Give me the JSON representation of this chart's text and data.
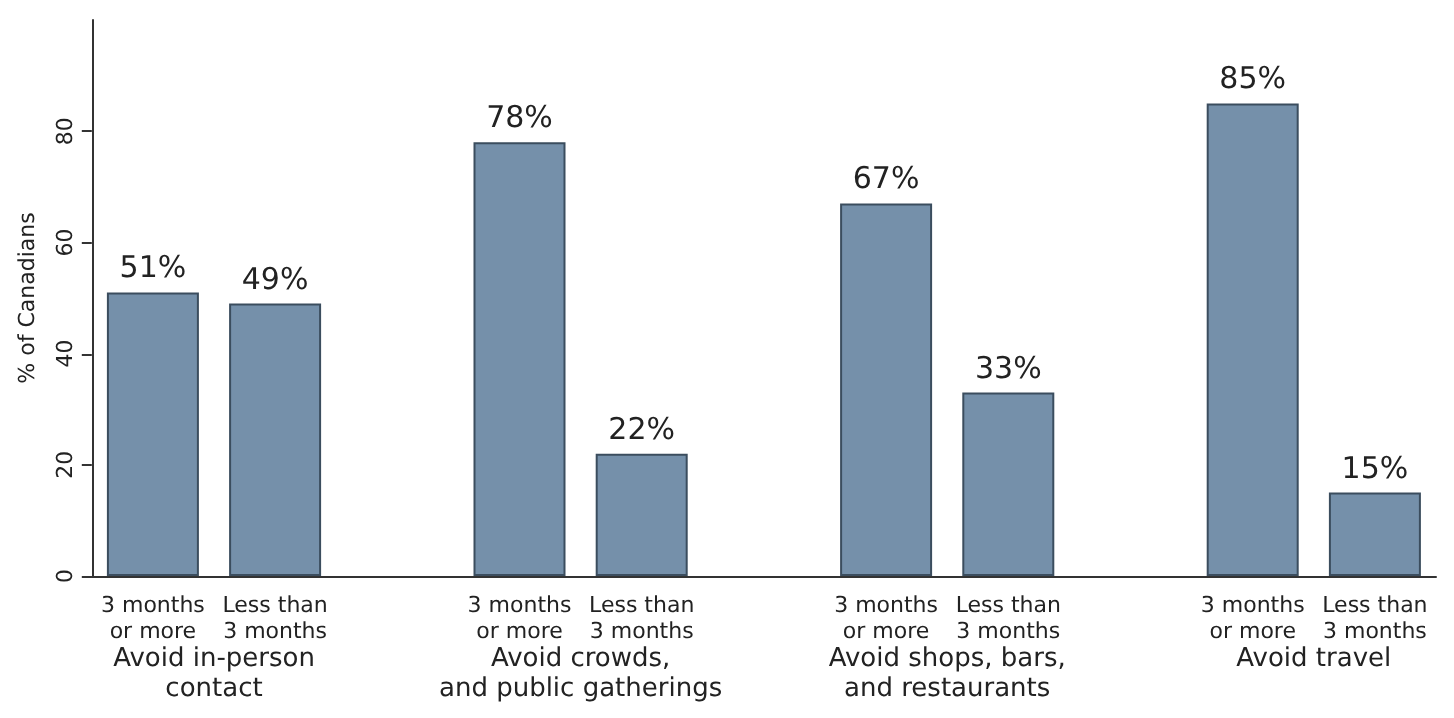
{
  "chart_data": {
    "type": "bar",
    "ylabel": "% of Canadians",
    "categories": [
      "3 months\nor more",
      "Less than\n3 months",
      null,
      "3 months\nor more",
      "Less than\n3 months",
      null,
      "3 months\nor more",
      "Less than\n3 months",
      null,
      "3 months\nor more",
      "Less than\n3 months"
    ],
    "values": [
      51,
      49,
      null,
      78,
      22,
      null,
      67,
      33,
      null,
      85,
      15
    ],
    "value_labels": [
      "51%",
      "49%",
      null,
      "78%",
      "22%",
      null,
      "67%",
      "33%",
      null,
      "85%",
      "15%"
    ],
    "color": "#7590aa",
    "ylim": [
      0,
      100
    ],
    "yticks": [
      0,
      20,
      40,
      60,
      80
    ],
    "annotations": [
      "Avoid in-person\ncontact",
      "Avoid crowds,\nand public gatherings",
      "Avoid shops, bars,\nand restaurants",
      "Avoid travel"
    ]
  }
}
